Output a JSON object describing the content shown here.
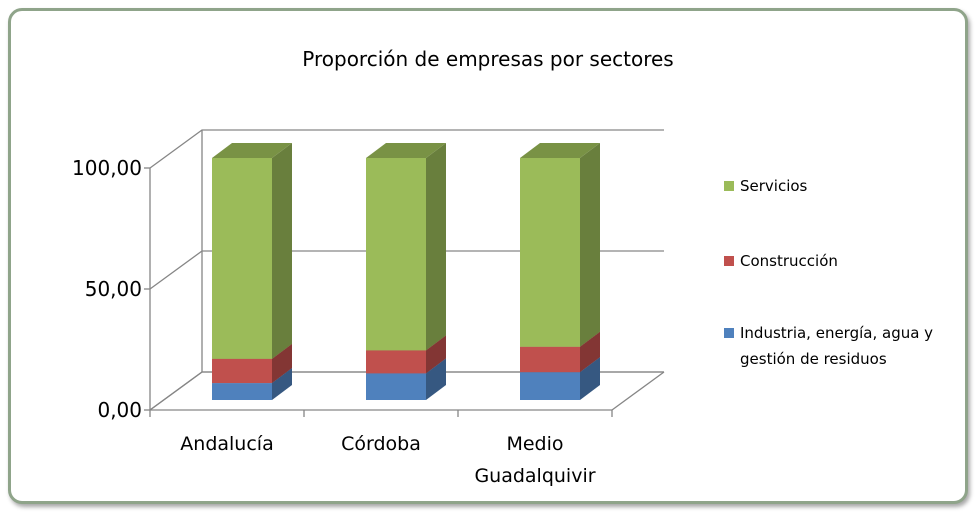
{
  "chart_data": {
    "type": "bar3d_stacked",
    "title": "Proporción de empresas por sectores",
    "categories": [
      "Andalucía",
      "Córdoba",
      "Medio Guadalquivir"
    ],
    "series": [
      {
        "name": "Industria, energía, agua y gestión de residuos",
        "color": "#4f81bd",
        "values": [
          7,
          11,
          11.5
        ]
      },
      {
        "name": "Construcción",
        "color": "#c0504d",
        "values": [
          10,
          9.5,
          10.5
        ]
      },
      {
        "name": "Servicios",
        "color": "#9bbb59",
        "values": [
          83,
          79.5,
          78
        ]
      }
    ],
    "ylim": [
      0,
      100
    ],
    "yticks": [
      {
        "value": 0,
        "label": "0,00"
      },
      {
        "value": 50,
        "label": "50,00"
      },
      {
        "value": 100,
        "label": "100,00"
      }
    ],
    "grid": true,
    "legend": "right"
  }
}
